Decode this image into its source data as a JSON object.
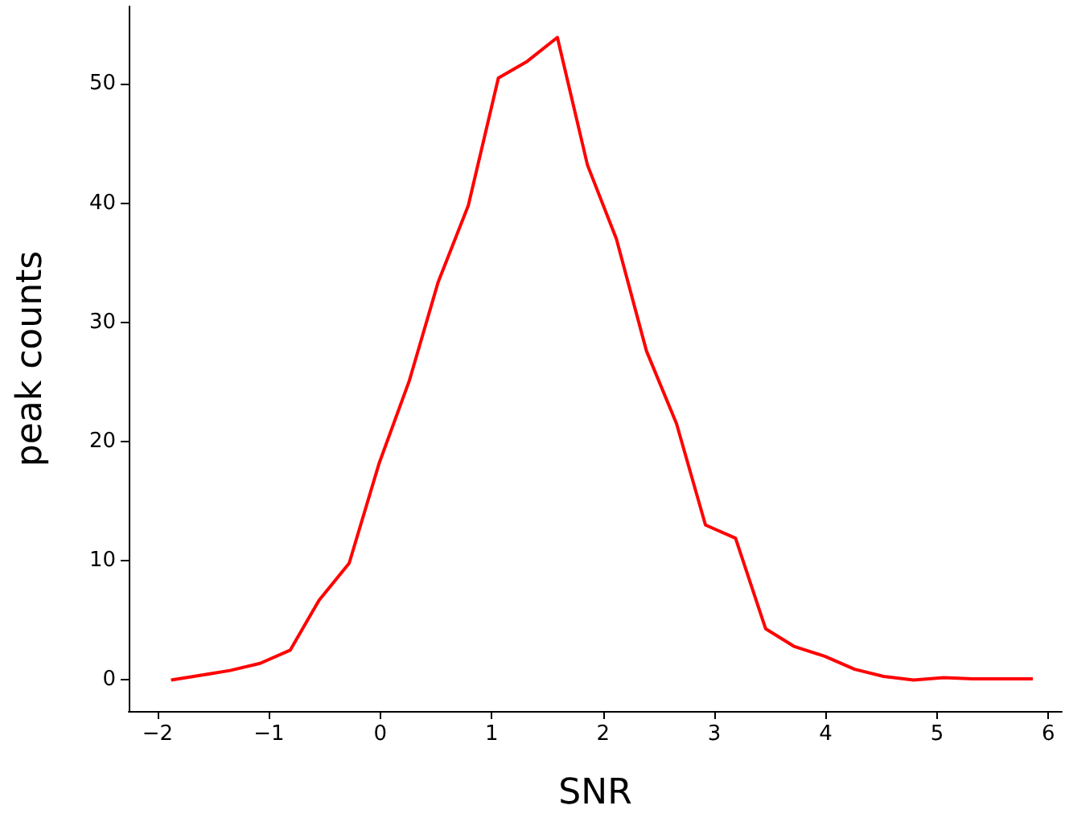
{
  "chart_data": {
    "type": "line",
    "xlabel": "SNR",
    "ylabel": "peak counts",
    "x": [
      -1.88,
      -1.61,
      -1.35,
      -1.08,
      -0.81,
      -0.55,
      -0.28,
      -0.01,
      0.26,
      0.52,
      0.79,
      1.06,
      1.32,
      1.59,
      1.86,
      2.12,
      2.39,
      2.66,
      2.92,
      3.19,
      3.46,
      3.72,
      3.99,
      4.26,
      4.52,
      4.79,
      5.06,
      5.32,
      5.59,
      5.86
    ],
    "series": [
      {
        "color": "#ff0000",
        "values": [
          0,
          0.4,
          0.8,
          1.4,
          2.5,
          6.7,
          9.8,
          18.2,
          25.1,
          33.4,
          39.8,
          50.5,
          51.9,
          53.9,
          43.2,
          37.0,
          27.6,
          21.5,
          13.0,
          11.9,
          4.3,
          2.8,
          2.0,
          0.9,
          0.3,
          0.0,
          0.2,
          0.1,
          0.1,
          0.1
        ]
      }
    ],
    "xlim": [
      -2.26,
      6.12
    ],
    "xticks": [
      -2,
      -1,
      0,
      1,
      2,
      3,
      4,
      5,
      6
    ],
    "ylim": [
      -2.6,
      56.5
    ],
    "yticks": [
      0,
      10,
      20,
      30,
      40,
      50
    ],
    "grid": false,
    "marker": "none",
    "line_style": "solid"
  }
}
